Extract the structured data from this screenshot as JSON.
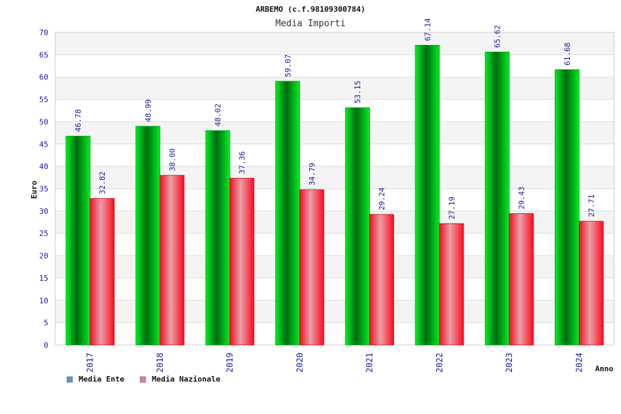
{
  "chart_data": {
    "type": "bar",
    "title": "ARBEMO (c.f.98109300784)",
    "subtitle": "Media Importi",
    "xlabel": "Anno",
    "ylabel": "Euro",
    "categories": [
      "2017",
      "2018",
      "2019",
      "2020",
      "2021",
      "2022",
      "2023",
      "2024"
    ],
    "ylim": [
      0,
      70
    ],
    "yticks": [
      0,
      5,
      10,
      15,
      20,
      25,
      30,
      35,
      40,
      45,
      50,
      55,
      60,
      65,
      70
    ],
    "grid": true,
    "legend_position": "bottom-left",
    "series": [
      {
        "name": "Media Ente",
        "values": [
          46.78,
          48.99,
          48.02,
          59.07,
          53.15,
          67.14,
          65.62,
          61.68
        ],
        "labels": [
          "46.78",
          "48.99",
          "48.02",
          "59.07",
          "53.15",
          "67.14",
          "65.62",
          "61.68"
        ],
        "color": "#00cc22",
        "legend_color": "#5b9bd5"
      },
      {
        "name": "Media Nazionale",
        "values": [
          32.82,
          38.0,
          37.36,
          34.79,
          29.24,
          27.19,
          29.43,
          27.71
        ],
        "labels": [
          "32.82",
          "38.00",
          "37.36",
          "34.79",
          "29.24",
          "27.19",
          "29.43",
          "27.71"
        ],
        "color": "#ee1122",
        "legend_color": "#e07bb0"
      }
    ]
  }
}
